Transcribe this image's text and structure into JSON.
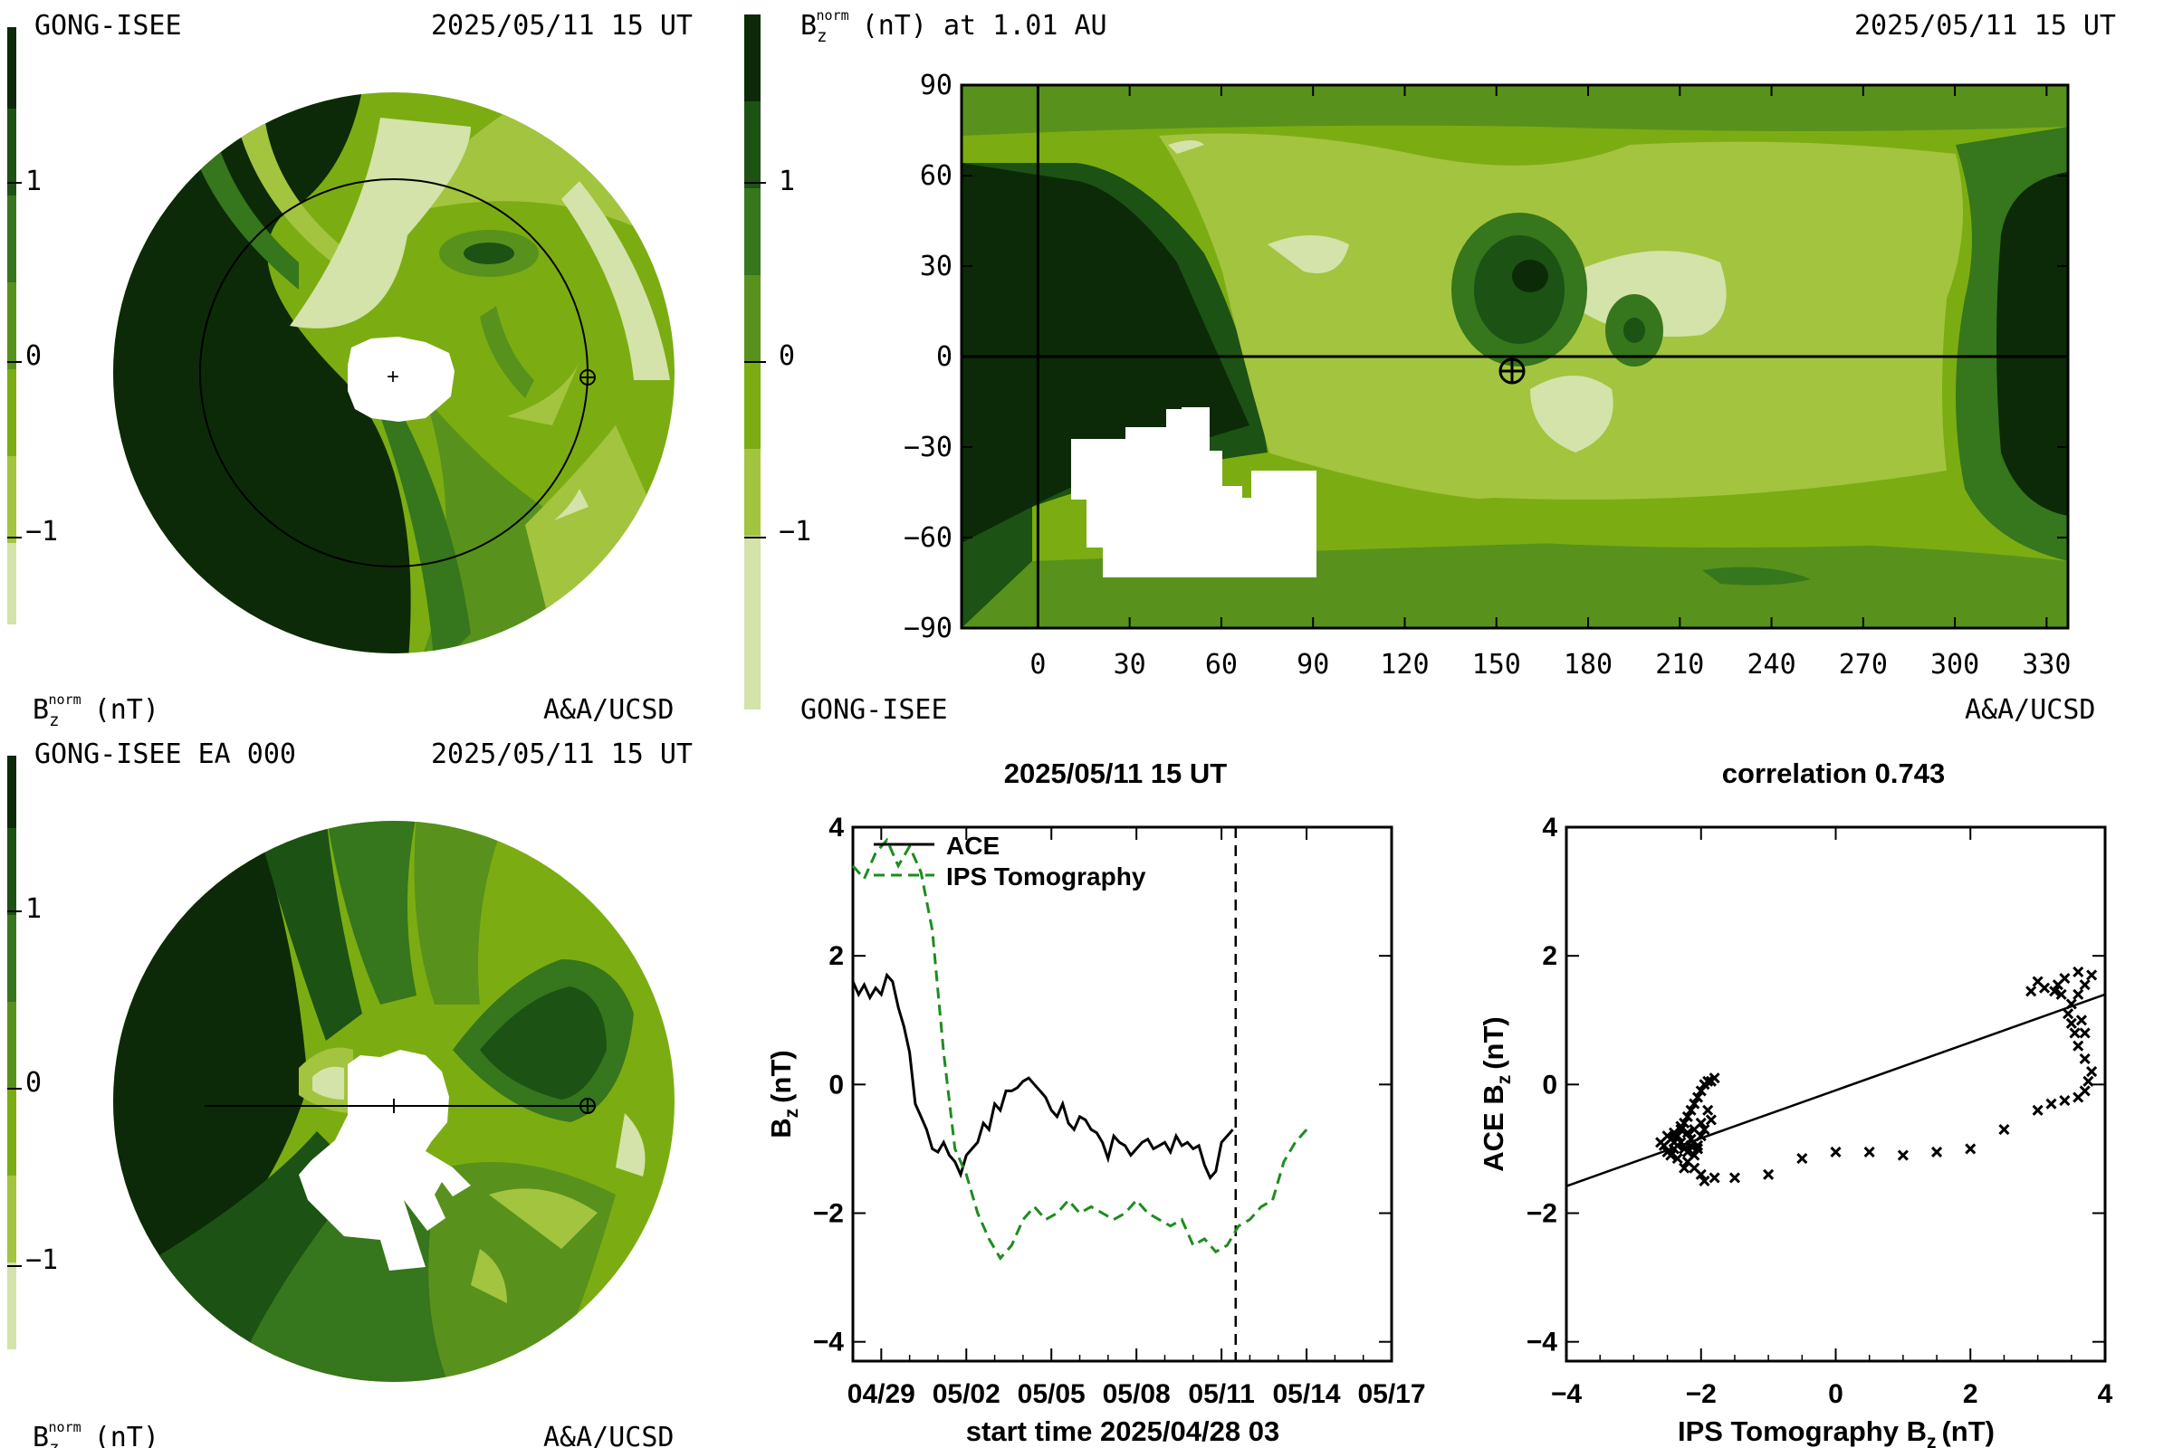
{
  "colors": {
    "ramp": [
      "#d3e3a9",
      "#a3c43f",
      "#7bad12",
      "#58921c",
      "#36761c",
      "#1c5214",
      "#0c2a08"
    ],
    "ace_line": "#000000",
    "ips_line": "#1e8c1e",
    "background": "#ffffff"
  },
  "colorbar": {
    "tick_labels": [
      "1",
      "0",
      "−1"
    ],
    "unit_label": "B",
    "unit_sub": "z",
    "unit_sup": "norm",
    "unit_tail": "(nT)"
  },
  "panel_top_left": {
    "source": "GONG-ISEE",
    "date": "2025/05/11 15 UT",
    "credit": "A&A/UCSD"
  },
  "panel_bottom_left": {
    "source": "GONG-ISEE EA 000",
    "date": "2025/05/11 15 UT",
    "credit": "A&A/UCSD"
  },
  "panel_map": {
    "title_main": "B",
    "title_sub": "z",
    "title_sup": "norm",
    "title_tail": "(nT) at 1.01 AU",
    "date": "2025/05/11 15 UT",
    "source": "GONG-ISEE",
    "credit": "A&A/UCSD",
    "earth_marker": "⊕"
  },
  "chart_data": [
    {
      "type": "heatmap",
      "title": "B_z^norm (nT) at 1.01 AU",
      "x_ticks": [
        0,
        30,
        60,
        90,
        120,
        150,
        180,
        210,
        240,
        270,
        300,
        330
      ],
      "y_ticks": [
        90,
        60,
        30,
        0,
        -30,
        -60,
        -90
      ],
      "y_tick_labels": [
        "90",
        "60",
        "30",
        "0",
        "−30",
        "−60",
        "−90"
      ],
      "xlim": [
        -25,
        337
      ],
      "ylim": [
        -90,
        90
      ],
      "earth_position": [
        155,
        -3
      ]
    },
    {
      "type": "line",
      "title": "2025/05/11 15 UT",
      "xlabel": "start time 2025/04/28 03",
      "ylabel_main": "B",
      "ylabel_sub": "z",
      "ylabel_tail": "(nT)",
      "x_tick_labels": [
        "04/29",
        "05/02",
        "05/05",
        "05/08",
        "05/11",
        "05/14",
        "05/17"
      ],
      "x_tick_days": [
        1,
        4,
        7,
        10,
        13,
        16,
        19
      ],
      "xlim": [
        0,
        19
      ],
      "y_ticks": [
        4,
        2,
        0,
        -2,
        -4
      ],
      "y_tick_labels": [
        "4",
        "2",
        "0",
        "−2",
        "−4"
      ],
      "ylim": [
        -4.3,
        4
      ],
      "current_time_day": 13.5,
      "series": [
        {
          "name": "ACE",
          "style": "solid",
          "x": [
            0,
            0.2,
            0.4,
            0.6,
            0.8,
            1.0,
            1.2,
            1.4,
            1.6,
            1.8,
            2.0,
            2.2,
            2.4,
            2.6,
            2.8,
            3.0,
            3.2,
            3.4,
            3.6,
            3.8,
            4.0,
            4.2,
            4.4,
            4.6,
            4.8,
            5.0,
            5.2,
            5.4,
            5.6,
            5.8,
            6.0,
            6.2,
            6.4,
            6.6,
            6.8,
            7.0,
            7.2,
            7.4,
            7.6,
            7.8,
            8.0,
            8.2,
            8.4,
            8.6,
            8.8,
            9.0,
            9.2,
            9.4,
            9.6,
            9.8,
            10.0,
            10.2,
            10.4,
            10.6,
            10.8,
            11.0,
            11.2,
            11.4,
            11.6,
            11.8,
            12.0,
            12.2,
            12.4,
            12.6,
            12.8,
            13.0,
            13.2,
            13.4
          ],
          "y": [
            1.6,
            1.4,
            1.55,
            1.35,
            1.5,
            1.4,
            1.7,
            1.6,
            1.2,
            0.9,
            0.5,
            -0.3,
            -0.5,
            -0.7,
            -1.0,
            -1.05,
            -0.9,
            -1.1,
            -1.2,
            -1.4,
            -1.1,
            -1.0,
            -0.9,
            -0.6,
            -0.7,
            -0.3,
            -0.4,
            -0.1,
            -0.1,
            -0.05,
            0.05,
            0.1,
            0.0,
            -0.1,
            -0.2,
            -0.4,
            -0.5,
            -0.3,
            -0.6,
            -0.7,
            -0.5,
            -0.55,
            -0.7,
            -0.75,
            -0.9,
            -1.15,
            -0.8,
            -0.9,
            -0.95,
            -1.1,
            -1.0,
            -0.9,
            -0.85,
            -1.0,
            -0.95,
            -0.9,
            -1.05,
            -0.8,
            -0.95,
            -0.9,
            -1.0,
            -0.95,
            -1.25,
            -1.45,
            -1.35,
            -0.9,
            -0.8,
            -0.7
          ]
        },
        {
          "name": "IPS Tomography",
          "style": "dashed",
          "x": [
            0,
            0.4,
            0.8,
            1.2,
            1.6,
            2.0,
            2.4,
            2.8,
            3.2,
            3.6,
            4.0,
            4.4,
            4.8,
            5.2,
            5.6,
            6.0,
            6.4,
            6.8,
            7.2,
            7.6,
            8.0,
            8.4,
            8.8,
            9.2,
            9.6,
            10.0,
            10.4,
            10.8,
            11.2,
            11.6,
            12.0,
            12.4,
            12.8,
            13.2,
            13.6,
            14.0,
            14.4,
            14.8,
            15.2,
            15.6,
            16.0
          ],
          "y": [
            3.4,
            3.2,
            3.6,
            3.8,
            3.4,
            3.7,
            3.3,
            2.4,
            0.5,
            -1.0,
            -1.4,
            -2.0,
            -2.4,
            -2.7,
            -2.5,
            -2.1,
            -1.9,
            -2.1,
            -2.0,
            -1.8,
            -2.0,
            -1.9,
            -2.0,
            -2.1,
            -2.0,
            -1.8,
            -2.0,
            -2.1,
            -2.2,
            -2.1,
            -2.5,
            -2.4,
            -2.6,
            -2.5,
            -2.2,
            -2.1,
            -1.9,
            -1.8,
            -1.2,
            -0.9,
            -0.7
          ]
        }
      ],
      "legend": [
        "ACE",
        "IPS Tomography"
      ]
    },
    {
      "type": "scatter",
      "title": "correlation 0.743",
      "xlabel_main": "IPS Tomography B",
      "xlabel_sub": "z",
      "xlabel_tail": "(nT)",
      "ylabel_main": "ACE B",
      "ylabel_sub": "z",
      "ylabel_tail": "(nT)",
      "x_ticks": [
        -4,
        -2,
        0,
        2,
        4
      ],
      "x_tick_labels": [
        "−4",
        "−2",
        "0",
        "2",
        "4"
      ],
      "y_ticks": [
        4,
        2,
        0,
        -2,
        -4
      ],
      "y_tick_labels": [
        "4",
        "2",
        "0",
        "−2",
        "−4"
      ],
      "xlim": [
        -4,
        4
      ],
      "ylim": [
        -4.3,
        4
      ],
      "fit_line": {
        "x": [
          -4,
          4
        ],
        "y": [
          -1.58,
          1.4
        ]
      },
      "points": [
        [
          -2.5,
          -0.8
        ],
        [
          -2.45,
          -0.85
        ],
        [
          -2.4,
          -0.9
        ],
        [
          -2.35,
          -0.95
        ],
        [
          -2.3,
          -0.9
        ],
        [
          -2.25,
          -1.0
        ],
        [
          -2.2,
          -1.05
        ],
        [
          -2.15,
          -0.95
        ],
        [
          -2.1,
          -1.1
        ],
        [
          -2.05,
          -1.0
        ],
        [
          -2.5,
          -1.05
        ],
        [
          -2.45,
          -1.1
        ],
        [
          -2.4,
          -1.0
        ],
        [
          -2.35,
          -0.8
        ],
        [
          -2.3,
          -0.7
        ],
        [
          -2.25,
          -0.6
        ],
        [
          -2.2,
          -0.5
        ],
        [
          -2.15,
          -0.4
        ],
        [
          -2.1,
          -0.3
        ],
        [
          -2.05,
          -0.2
        ],
        [
          -2.0,
          -0.1
        ],
        [
          -1.95,
          0.0
        ],
        [
          -1.9,
          0.05
        ],
        [
          -1.85,
          0.05
        ],
        [
          -1.8,
          0.1
        ],
        [
          -2.4,
          -0.75
        ],
        [
          -2.3,
          -0.65
        ],
        [
          -2.2,
          -0.75
        ],
        [
          -2.1,
          -0.7
        ],
        [
          -2.0,
          -0.8
        ],
        [
          -2.2,
          -1.2
        ],
        [
          -2.1,
          -1.3
        ],
        [
          -2.0,
          -1.4
        ],
        [
          -1.95,
          -1.5
        ],
        [
          -2.25,
          -1.3
        ],
        [
          -1.8,
          -1.45
        ],
        [
          -2.55,
          -0.95
        ],
        [
          -2.6,
          -0.9
        ],
        [
          -2.0,
          -0.6
        ],
        [
          -1.9,
          -0.4
        ],
        [
          -2.15,
          -0.85
        ],
        [
          -2.05,
          -0.95
        ],
        [
          -1.95,
          -0.7
        ],
        [
          -1.85,
          -0.55
        ],
        [
          -2.35,
          -1.15
        ],
        [
          -1.5,
          -1.45
        ],
        [
          -1.0,
          -1.4
        ],
        [
          -0.5,
          -1.15
        ],
        [
          0.0,
          -1.05
        ],
        [
          0.5,
          -1.05
        ],
        [
          1.0,
          -1.1
        ],
        [
          1.5,
          -1.05
        ],
        [
          2.0,
          -1.0
        ],
        [
          2.5,
          -0.7
        ],
        [
          3.0,
          -0.4
        ],
        [
          3.2,
          -0.3
        ],
        [
          3.4,
          -0.25
        ],
        [
          3.6,
          -0.2
        ],
        [
          3.7,
          -0.1
        ],
        [
          3.75,
          0.05
        ],
        [
          3.8,
          0.2
        ],
        [
          3.7,
          0.4
        ],
        [
          3.6,
          0.6
        ],
        [
          3.55,
          0.8
        ],
        [
          3.5,
          0.95
        ],
        [
          3.45,
          1.1
        ],
        [
          3.5,
          1.25
        ],
        [
          3.6,
          1.4
        ],
        [
          3.7,
          1.55
        ],
        [
          3.8,
          1.7
        ],
        [
          3.6,
          1.75
        ],
        [
          3.4,
          1.65
        ],
        [
          3.3,
          1.55
        ],
        [
          3.25,
          1.45
        ],
        [
          3.1,
          1.5
        ],
        [
          3.0,
          1.6
        ],
        [
          2.9,
          1.45
        ],
        [
          3.35,
          1.4
        ],
        [
          3.7,
          0.8
        ],
        [
          3.65,
          1.0
        ]
      ]
    }
  ]
}
